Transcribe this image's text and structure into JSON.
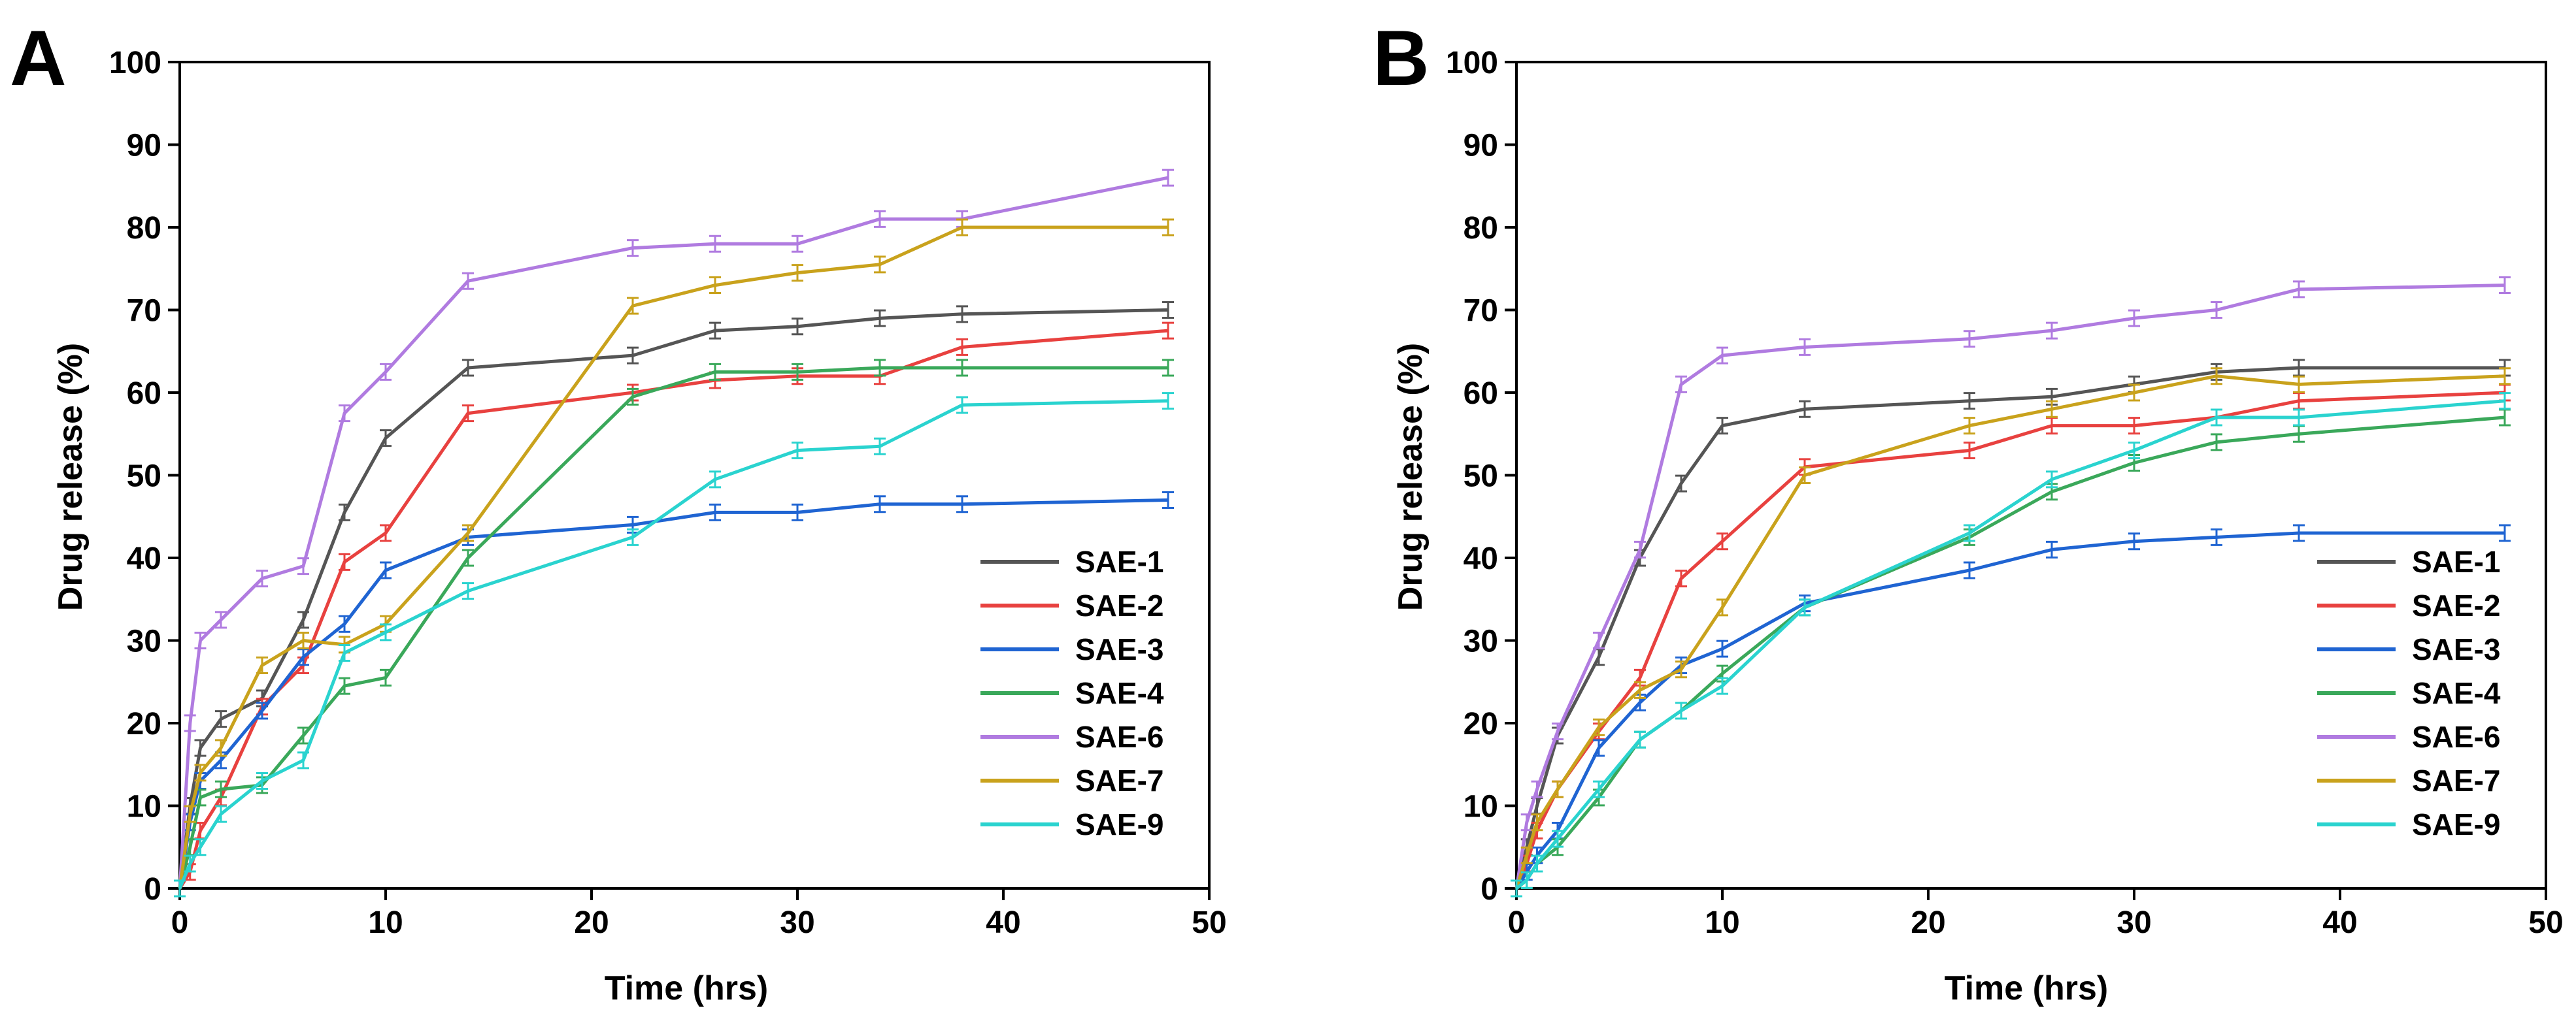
{
  "chart_data": [
    {
      "type": "line",
      "panel": "A",
      "xlabel": "Time (hrs)",
      "ylabel": "Drug release (%)",
      "xlim": [
        0,
        50
      ],
      "ylim": [
        0,
        100
      ],
      "xticks": [
        0,
        10,
        20,
        30,
        40,
        50
      ],
      "yticks": [
        0,
        10,
        20,
        30,
        40,
        50,
        60,
        70,
        80,
        90,
        100
      ],
      "legend_position": "bottom-right",
      "series": [
        {
          "name": "SAE-1",
          "color": "#555555",
          "x": [
            0,
            0.5,
            1,
            2,
            4,
            6,
            8,
            10,
            14,
            22,
            26,
            30,
            34,
            38,
            48
          ],
          "y": [
            0,
            10,
            17,
            20.5,
            23,
            32.5,
            45.5,
            54.5,
            63,
            64.5,
            67.5,
            68,
            69,
            69.5,
            70
          ]
        },
        {
          "name": "SAE-2",
          "color": "#e8413f",
          "x": [
            0,
            0.5,
            1,
            2,
            4,
            6,
            8,
            10,
            14,
            22,
            26,
            30,
            34,
            38,
            48
          ],
          "y": [
            0,
            2,
            7,
            11,
            22,
            27,
            39.5,
            43,
            57.5,
            60,
            61.5,
            62,
            62,
            65.5,
            67.5
          ]
        },
        {
          "name": "SAE-3",
          "color": "#1f64d2",
          "x": [
            0,
            0.5,
            1,
            2,
            4,
            6,
            8,
            10,
            14,
            22,
            26,
            30,
            34,
            38,
            48
          ],
          "y": [
            0,
            8,
            13,
            15.5,
            21.5,
            28,
            32,
            38.5,
            42.5,
            44,
            45.5,
            45.5,
            46.5,
            46.5,
            47
          ]
        },
        {
          "name": "SAE-4",
          "color": "#3aa85a",
          "x": [
            0,
            0.5,
            1,
            2,
            4,
            6,
            8,
            10,
            14,
            22,
            26,
            30,
            34,
            38,
            48
          ],
          "y": [
            0,
            5,
            11,
            12,
            12.5,
            18.5,
            24.5,
            25.5,
            40,
            59.5,
            62.5,
            62.5,
            63,
            63,
            63
          ]
        },
        {
          "name": "SAE-6",
          "color": "#b07be0",
          "x": [
            0,
            0.5,
            1,
            2,
            4,
            6,
            8,
            10,
            14,
            22,
            26,
            30,
            34,
            38,
            48
          ],
          "y": [
            0,
            20,
            30,
            32.5,
            37.5,
            39,
            57.5,
            62.5,
            73.5,
            77.5,
            78,
            78,
            81,
            81,
            86
          ]
        },
        {
          "name": "SAE-7",
          "color": "#c9a21c",
          "x": [
            0,
            0.5,
            1,
            2,
            4,
            6,
            8,
            10,
            14,
            22,
            26,
            30,
            34,
            38,
            48
          ],
          "y": [
            0,
            9,
            14,
            17,
            27,
            30,
            29.5,
            32,
            43,
            70.5,
            73,
            74.5,
            75.5,
            80,
            80
          ]
        },
        {
          "name": "SAE-9",
          "color": "#2ad3cf",
          "x": [
            0,
            0.5,
            1,
            2,
            4,
            6,
            8,
            10,
            14,
            22,
            26,
            30,
            34,
            38,
            48
          ],
          "y": [
            0,
            3,
            5,
            9,
            13,
            15.5,
            28.5,
            31,
            36,
            42.5,
            49.5,
            53,
            53.5,
            58.5,
            59
          ]
        }
      ]
    },
    {
      "type": "line",
      "panel": "B",
      "xlabel": "Time (hrs)",
      "ylabel": "Drug release (%)",
      "xlim": [
        0,
        50
      ],
      "ylim": [
        0,
        100
      ],
      "xticks": [
        0,
        10,
        20,
        30,
        40,
        50
      ],
      "yticks": [
        0,
        10,
        20,
        30,
        40,
        50,
        60,
        70,
        80,
        90,
        100
      ],
      "legend_position": "bottom-right",
      "series": [
        {
          "name": "SAE-1",
          "color": "#555555",
          "x": [
            0,
            0.5,
            1,
            2,
            4,
            6,
            8,
            10,
            14,
            22,
            26,
            30,
            34,
            38,
            48
          ],
          "y": [
            0,
            5,
            10,
            18.5,
            28,
            40,
            49,
            56,
            58,
            59,
            59.5,
            61,
            62.5,
            63,
            63
          ]
        },
        {
          "name": "SAE-2",
          "color": "#e8413f",
          "x": [
            0,
            0.5,
            1,
            2,
            4,
            6,
            8,
            10,
            14,
            22,
            26,
            30,
            34,
            38,
            48
          ],
          "y": [
            0,
            3,
            7,
            12,
            19,
            25.5,
            37.5,
            42,
            51,
            53,
            56,
            56,
            57,
            59,
            60
          ]
        },
        {
          "name": "SAE-3",
          "color": "#1f64d2",
          "x": [
            0,
            0.5,
            1,
            2,
            4,
            6,
            8,
            10,
            14,
            22,
            26,
            30,
            34,
            38,
            48
          ],
          "y": [
            0,
            2,
            4,
            7,
            17,
            22.5,
            27,
            29,
            34.5,
            38.5,
            41,
            42,
            42.5,
            43,
            43
          ]
        },
        {
          "name": "SAE-4",
          "color": "#3aa85a",
          "x": [
            0,
            0.5,
            1,
            2,
            4,
            6,
            8,
            10,
            14,
            22,
            26,
            30,
            34,
            38,
            48
          ],
          "y": [
            0,
            1,
            3,
            5,
            11,
            18,
            21.5,
            26,
            34,
            42.5,
            48,
            51.5,
            54,
            55,
            57
          ]
        },
        {
          "name": "SAE-6",
          "color": "#b07be0",
          "x": [
            0,
            0.5,
            1,
            2,
            4,
            6,
            8,
            10,
            14,
            22,
            26,
            30,
            34,
            38,
            48
          ],
          "y": [
            0,
            8,
            12,
            19,
            30,
            41,
            61,
            64.5,
            65.5,
            66.5,
            67.5,
            69,
            70,
            72.5,
            73
          ]
        },
        {
          "name": "SAE-7",
          "color": "#c9a21c",
          "x": [
            0,
            0.5,
            1,
            2,
            4,
            6,
            8,
            10,
            14,
            22,
            26,
            30,
            34,
            38,
            48
          ],
          "y": [
            0,
            4,
            8,
            12,
            19.5,
            24,
            26.5,
            34,
            50,
            56,
            58,
            60,
            62,
            61,
            62
          ]
        },
        {
          "name": "SAE-9",
          "color": "#2ad3cf",
          "x": [
            0,
            0.5,
            1,
            2,
            4,
            6,
            8,
            10,
            14,
            22,
            26,
            30,
            34,
            38,
            48
          ],
          "y": [
            0,
            1,
            3,
            6,
            12,
            18,
            21.5,
            24.5,
            34,
            43,
            49.5,
            53,
            57,
            57,
            59
          ]
        }
      ]
    }
  ],
  "panels": [
    {
      "letter": "A",
      "xlabel": "Time (hrs)",
      "ylabel": "Drug release (%)"
    },
    {
      "letter": "B",
      "xlabel": "Time (hrs)",
      "ylabel": "Drug release (%)"
    }
  ]
}
